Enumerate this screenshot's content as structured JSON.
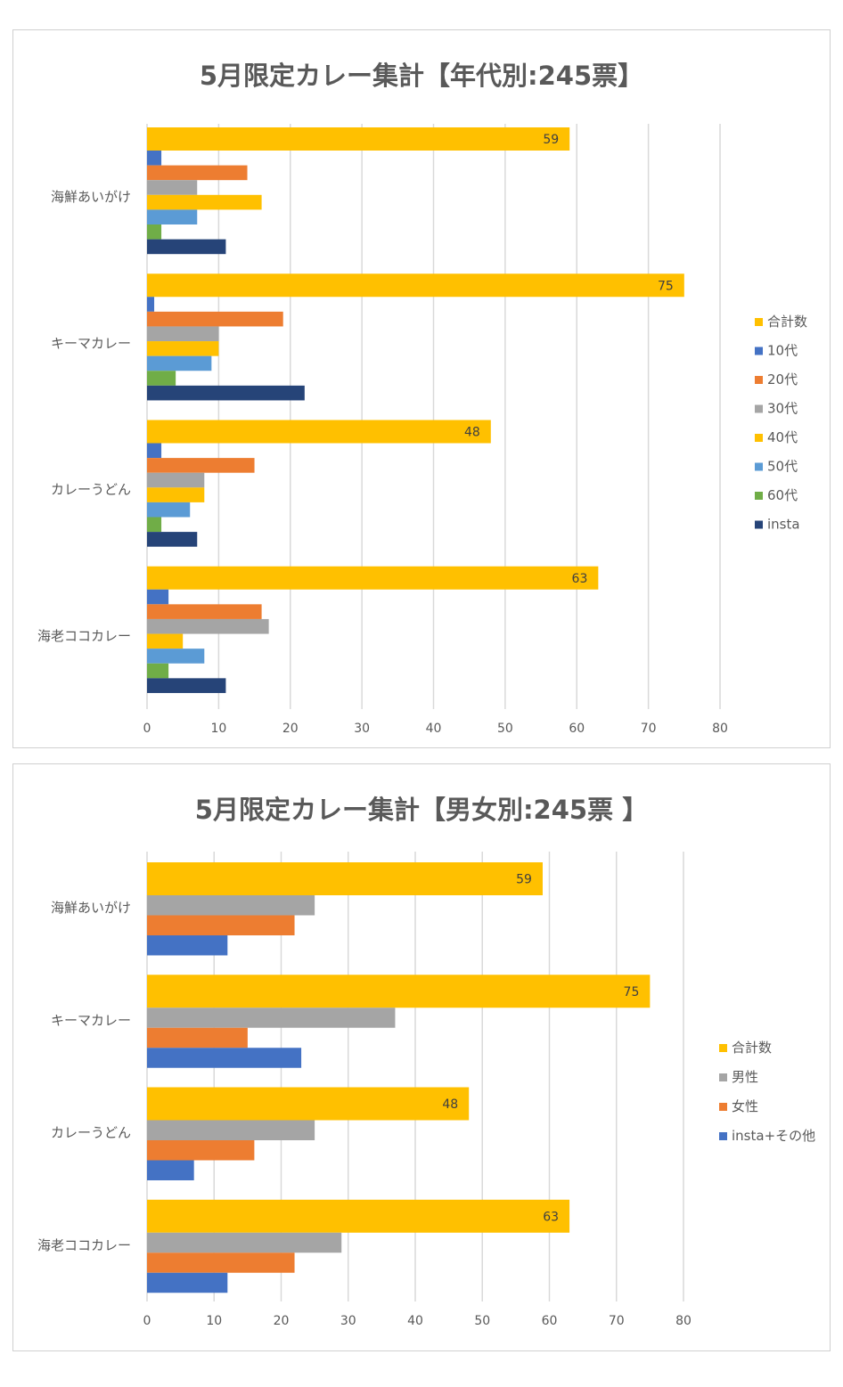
{
  "chart_data": [
    {
      "type": "bar",
      "orientation": "horizontal",
      "title": "5月限定カレー集計【年代別:245票】",
      "categories": [
        "海鮮あいがけ",
        "キーマカレー",
        "カレーうどん",
        "海老ココカレー"
      ],
      "xlim": [
        0,
        80
      ],
      "xticks": [
        0,
        10,
        20,
        30,
        40,
        50,
        60,
        70,
        80
      ],
      "grid": true,
      "legend": "right",
      "series": [
        {
          "name": "合計数",
          "color": "#FFC000",
          "values": [
            59,
            75,
            48,
            63
          ],
          "labels": true
        },
        {
          "name": "10代",
          "color": "#4472C4",
          "values": [
            2,
            1,
            2,
            3
          ]
        },
        {
          "name": "20代",
          "color": "#ED7D31",
          "values": [
            14,
            19,
            15,
            16
          ]
        },
        {
          "name": "30代",
          "color": "#A5A5A5",
          "values": [
            7,
            10,
            8,
            17
          ]
        },
        {
          "name": "40代",
          "color": "#FFC000",
          "values": [
            16,
            10,
            8,
            5
          ]
        },
        {
          "name": "50代",
          "color": "#5B9BD5",
          "values": [
            7,
            9,
            6,
            8
          ]
        },
        {
          "name": "60代",
          "color": "#70AD47",
          "values": [
            2,
            4,
            2,
            3
          ]
        },
        {
          "name": "insta",
          "color": "#264478",
          "values": [
            11,
            22,
            7,
            11
          ]
        }
      ]
    },
    {
      "type": "bar",
      "orientation": "horizontal",
      "title": "5月限定カレー集計【男女別:245票 】",
      "categories": [
        "海鮮あいがけ",
        "キーマカレー",
        "カレーうどん",
        "海老ココカレー"
      ],
      "xlim": [
        0,
        80
      ],
      "xticks": [
        0,
        10,
        20,
        30,
        40,
        50,
        60,
        70,
        80
      ],
      "grid": true,
      "legend": "right",
      "series": [
        {
          "name": "合計数",
          "color": "#FFC000",
          "values": [
            59,
            75,
            48,
            63
          ],
          "labels": true
        },
        {
          "name": "男性",
          "color": "#A5A5A5",
          "values": [
            25,
            37,
            25,
            29
          ]
        },
        {
          "name": "女性",
          "color": "#ED7D31",
          "values": [
            22,
            15,
            16,
            22
          ]
        },
        {
          "name": "insta+その他",
          "color": "#4472C4",
          "values": [
            12,
            23,
            7,
            12
          ]
        }
      ]
    }
  ]
}
